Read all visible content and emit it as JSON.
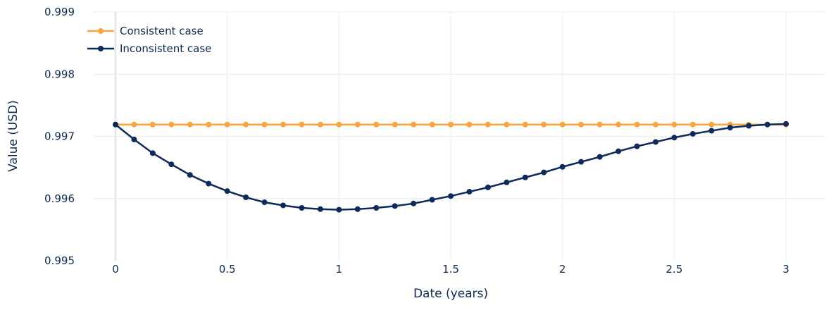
{
  "chart_data": {
    "type": "line",
    "title": "",
    "xlabel": "Date (years)",
    "ylabel": "Value (USD)",
    "xlim": [
      0,
      3
    ],
    "ylim": [
      0.995,
      0.999
    ],
    "x_ticks": [
      "0",
      "0.5",
      "1",
      "1.5",
      "2",
      "2.5",
      "3"
    ],
    "x_tick_values": [
      0,
      0.5,
      1,
      1.5,
      2,
      2.5,
      3
    ],
    "y_ticks": [
      "0.995",
      "0.996",
      "0.997",
      "0.998",
      "0.999"
    ],
    "y_tick_values": [
      0.995,
      0.996,
      0.997,
      0.998,
      0.999
    ],
    "grid": true,
    "legend_position": "top-left",
    "series": [
      {
        "name": "Consistent case",
        "color": "#f9a53f",
        "x": [
          0,
          0.0833,
          0.1667,
          0.25,
          0.3333,
          0.4167,
          0.5,
          0.5833,
          0.6667,
          0.75,
          0.8333,
          0.9167,
          1,
          1.0833,
          1.1667,
          1.25,
          1.3333,
          1.4167,
          1.5,
          1.5833,
          1.6667,
          1.75,
          1.8333,
          1.9167,
          2,
          2.0833,
          2.1667,
          2.25,
          2.3333,
          2.4167,
          2.5,
          2.5833,
          2.6667,
          2.75,
          2.8333,
          2.9167,
          3
        ],
        "y": [
          0.99719,
          0.99719,
          0.99719,
          0.99719,
          0.99719,
          0.99719,
          0.99719,
          0.99719,
          0.99719,
          0.99719,
          0.99719,
          0.99719,
          0.99719,
          0.99719,
          0.99719,
          0.99719,
          0.99719,
          0.99719,
          0.99719,
          0.99719,
          0.99719,
          0.99719,
          0.99719,
          0.99719,
          0.99719,
          0.99719,
          0.99719,
          0.99719,
          0.99719,
          0.99719,
          0.99719,
          0.99719,
          0.99719,
          0.99719,
          0.99719,
          0.99719,
          0.99719
        ]
      },
      {
        "name": "Inconsistent case",
        "color": "#0d2a5c",
        "x": [
          0,
          0.0833,
          0.1667,
          0.25,
          0.3333,
          0.4167,
          0.5,
          0.5833,
          0.6667,
          0.75,
          0.8333,
          0.9167,
          1,
          1.0833,
          1.1667,
          1.25,
          1.3333,
          1.4167,
          1.5,
          1.5833,
          1.6667,
          1.75,
          1.8333,
          1.9167,
          2,
          2.0833,
          2.1667,
          2.25,
          2.3333,
          2.4167,
          2.5,
          2.5833,
          2.6667,
          2.75,
          2.8333,
          2.9167,
          3
        ],
        "y": [
          0.99719,
          0.99695,
          0.99673,
          0.99655,
          0.99638,
          0.99624,
          0.99612,
          0.99602,
          0.99594,
          0.99589,
          0.99585,
          0.99583,
          0.99582,
          0.99583,
          0.99585,
          0.99588,
          0.99592,
          0.99598,
          0.99604,
          0.99611,
          0.99618,
          0.99626,
          0.99634,
          0.99642,
          0.99651,
          0.99659,
          0.99667,
          0.99676,
          0.99684,
          0.99691,
          0.99698,
          0.99704,
          0.99709,
          0.99714,
          0.99717,
          0.99719,
          0.9972
        ]
      }
    ]
  }
}
